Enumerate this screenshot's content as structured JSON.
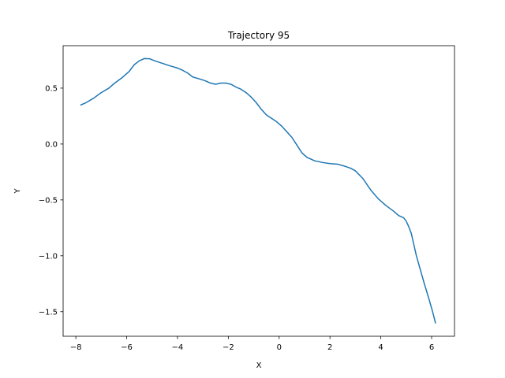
{
  "chart_data": {
    "type": "line",
    "title": "Trajectory 95",
    "xlabel": "X",
    "ylabel": "Y",
    "xlim": [
      -8.5,
      6.9
    ],
    "ylim": [
      -1.72,
      0.88
    ],
    "xticks": [
      -8,
      -6,
      -4,
      -2,
      0,
      2,
      4,
      6
    ],
    "xtick_labels": [
      "−8",
      "−6",
      "−4",
      "−2",
      "0",
      "2",
      "4",
      "6"
    ],
    "yticks": [
      -1.5,
      -1.0,
      -0.5,
      0.0,
      0.5
    ],
    "ytick_labels": [
      "−1.5",
      "−1.0",
      "−0.5",
      "0.0",
      "0.5"
    ],
    "grid": false,
    "series": [
      {
        "color": "#1f77b4",
        "x": [
          -7.8,
          -7.6,
          -7.3,
          -7.0,
          -6.7,
          -6.5,
          -6.2,
          -5.9,
          -5.7,
          -5.5,
          -5.3,
          -5.1,
          -4.9,
          -4.7,
          -4.5,
          -4.3,
          -4.0,
          -3.8,
          -3.6,
          -3.4,
          -3.1,
          -2.9,
          -2.7,
          -2.5,
          -2.3,
          -2.1,
          -1.9,
          -1.7,
          -1.5,
          -1.3,
          -1.1,
          -0.9,
          -0.7,
          -0.5,
          -0.3,
          -0.1,
          0.1,
          0.3,
          0.5,
          0.7,
          0.9,
          1.1,
          1.4,
          1.7,
          2.0,
          2.3,
          2.6,
          2.8,
          3.0,
          3.3,
          3.6,
          3.9,
          4.2,
          4.5,
          4.7,
          4.9,
          5.0,
          5.1,
          5.2,
          5.3,
          5.4,
          5.5,
          5.7,
          5.9,
          6.05,
          6.15
        ],
        "y": [
          0.35,
          0.37,
          0.41,
          0.46,
          0.5,
          0.54,
          0.59,
          0.65,
          0.71,
          0.745,
          0.765,
          0.763,
          0.745,
          0.73,
          0.715,
          0.7,
          0.68,
          0.66,
          0.635,
          0.6,
          0.58,
          0.565,
          0.545,
          0.535,
          0.545,
          0.545,
          0.535,
          0.51,
          0.49,
          0.46,
          0.42,
          0.37,
          0.31,
          0.26,
          0.23,
          0.2,
          0.16,
          0.11,
          0.06,
          -0.01,
          -0.08,
          -0.12,
          -0.15,
          -0.165,
          -0.175,
          -0.18,
          -0.2,
          -0.215,
          -0.24,
          -0.31,
          -0.41,
          -0.49,
          -0.55,
          -0.6,
          -0.64,
          -0.66,
          -0.69,
          -0.74,
          -0.8,
          -0.9,
          -1.0,
          -1.08,
          -1.24,
          -1.39,
          -1.51,
          -1.6
        ]
      }
    ]
  }
}
